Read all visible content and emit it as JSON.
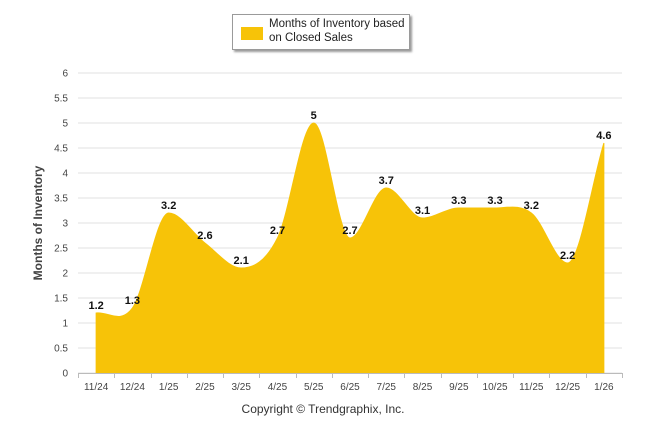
{
  "chart_data": {
    "type": "area",
    "title": "",
    "legend": "Months of Inventory based on Closed Sales",
    "legend_lines": [
      "Months of Inventory based",
      "on Closed Sales"
    ],
    "legend_position": "top-center",
    "ylabel": "Months of Inventory",
    "xlabel": "",
    "ylim": [
      0,
      6
    ],
    "yticks": [
      "0",
      "0.5",
      "1",
      "1.5",
      "2",
      "2.5",
      "3",
      "3.5",
      "4",
      "4.5",
      "5",
      "5.5",
      "6"
    ],
    "categories": [
      "11/24",
      "12/24",
      "1/25",
      "2/25",
      "3/25",
      "4/25",
      "5/25",
      "6/25",
      "7/25",
      "8/25",
      "9/25",
      "10/25",
      "11/25",
      "12/25",
      "1/26"
    ],
    "values": [
      1.2,
      1.3,
      3.2,
      2.6,
      2.1,
      2.7,
      5,
      2.7,
      3.7,
      3.1,
      3.3,
      3.3,
      3.2,
      2.2,
      4.6
    ],
    "value_labels": [
      "1.2",
      "1.3",
      "3.2",
      "2.6",
      "2.1",
      "2.7",
      "5",
      "2.7",
      "3.7",
      "3.1",
      "3.3",
      "3.3",
      "3.2",
      "2.2",
      "4.6"
    ],
    "grid": true,
    "color": "#F7C308"
  },
  "footer": "Copyright © Trendgraphix, Inc."
}
